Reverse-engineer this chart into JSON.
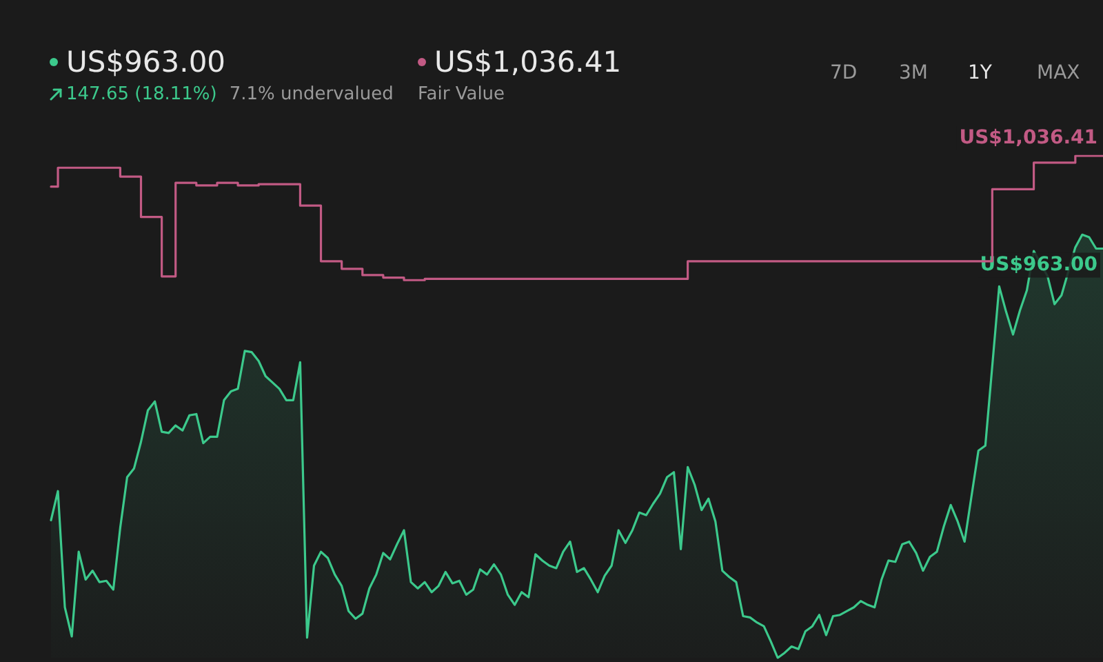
{
  "chart_data": {
    "type": "area",
    "categories": [
      null,
      null,
      null,
      null,
      null,
      null,
      null,
      null,
      null,
      null,
      null,
      null,
      null,
      null,
      null,
      null,
      null,
      null,
      null,
      null,
      null,
      null,
      null,
      null,
      null,
      null,
      null,
      null,
      null,
      null,
      null,
      null,
      null,
      null,
      null,
      null,
      null,
      null,
      null,
      null,
      null,
      null,
      null,
      null,
      null,
      null,
      null,
      null,
      null,
      null,
      null,
      null,
      null,
      null,
      null,
      null,
      null,
      null,
      null,
      null,
      null,
      null,
      null,
      null,
      null,
      null,
      null,
      null,
      null,
      null,
      null,
      null,
      null,
      null,
      null,
      null,
      null,
      null,
      null,
      null,
      null,
      null,
      null,
      null,
      null,
      null,
      null,
      null,
      null,
      null,
      null,
      null,
      null,
      null,
      null,
      null,
      null,
      null,
      null,
      null,
      null,
      null,
      null,
      null,
      null,
      null,
      null,
      null,
      null,
      null,
      null,
      null,
      null,
      null,
      null,
      null,
      null,
      null,
      null,
      null,
      null,
      null,
      null,
      null,
      null,
      null,
      null,
      null,
      null,
      null,
      null,
      null,
      null,
      null,
      null,
      null,
      null,
      null,
      null,
      null,
      null,
      null,
      null,
      null,
      null,
      null,
      null,
      null,
      null,
      null,
      null,
      null,
      null
    ],
    "series": [
      {
        "color": "#3cc98c",
        "values": [
          748,
          771,
          679,
          656,
          723,
          701,
          708,
          699,
          700,
          693,
          742,
          782,
          789,
          810,
          835,
          842,
          818,
          817,
          823,
          819,
          831,
          832,
          809,
          814,
          814,
          843,
          850,
          852,
          882,
          881,
          874,
          862,
          857,
          852,
          843,
          843,
          873,
          655,
          712,
          723,
          718,
          705,
          696,
          676,
          670,
          674,
          694,
          705,
          722,
          717,
          729,
          740,
          699,
          694,
          699,
          691,
          696,
          707,
          698,
          700,
          689,
          693,
          709,
          705,
          713,
          705,
          689,
          681,
          691,
          687,
          721,
          716,
          712,
          710,
          723,
          731,
          707,
          710,
          701,
          691,
          704,
          712,
          740,
          730,
          740,
          754,
          752,
          761,
          769,
          782,
          786,
          725,
          790,
          776,
          756,
          765,
          747,
          708,
          703,
          699,
          672,
          671,
          667,
          664,
          652,
          639,
          643,
          648,
          646,
          660,
          664,
          673,
          657,
          672,
          673,
          676,
          679,
          684,
          681,
          679,
          701,
          716,
          715,
          729,
          731,
          722,
          708,
          719,
          723,
          743,
          760,
          747,
          731,
          767,
          803,
          807,
          null,
          933,
          913,
          895,
          914,
          930,
          961,
          null,
          941,
          919,
          926,
          null,
          964,
          974,
          972,
          963,
          963
        ],
        "value_labels": [
          null,
          null,
          null,
          null,
          null,
          null,
          null,
          null,
          null,
          null,
          null,
          null,
          null,
          null,
          null,
          null,
          null,
          null,
          null,
          null,
          null,
          null,
          null,
          null,
          null,
          null,
          null,
          null,
          null,
          null,
          null,
          null,
          null,
          null,
          null,
          null,
          null,
          null,
          null,
          null,
          null,
          null,
          null,
          null,
          null,
          null,
          null,
          null,
          null,
          null,
          null,
          null,
          null,
          null,
          null,
          null,
          null,
          null,
          null,
          null,
          null,
          null,
          null,
          null,
          null,
          null,
          null,
          null,
          null,
          null,
          null,
          null,
          null,
          null,
          null,
          null,
          null,
          null,
          null,
          null,
          null,
          null,
          null,
          null,
          null,
          null,
          null,
          null,
          null,
          null,
          null,
          null,
          null,
          null,
          null,
          null,
          null,
          null,
          null,
          null,
          null,
          null,
          null,
          null,
          null,
          null,
          null,
          null,
          null,
          null,
          null,
          null,
          null,
          null,
          null,
          null,
          null,
          null,
          null,
          null,
          null,
          null,
          null,
          null,
          null,
          null,
          null,
          null,
          null,
          null,
          null,
          null,
          null,
          null,
          null,
          null,
          null,
          null,
          null,
          null,
          null,
          null,
          null,
          null,
          null,
          null,
          null,
          null,
          null,
          null,
          null,
          null,
          "US$963.00"
        ]
      },
      {
        "name": "Fair Value",
        "type": "step",
        "color": "#c25a84",
        "values": [
          1012,
          1027,
          1027,
          1027,
          1027,
          1027,
          1027,
          1027,
          1027,
          1027,
          1020,
          1020,
          1020,
          988,
          988,
          988,
          941,
          941,
          1015,
          1015,
          1015,
          1013,
          1013,
          1013,
          1015,
          1015,
          1015,
          1013,
          1013,
          1013,
          1014,
          1014,
          1014,
          1014,
          1014,
          1014,
          997,
          997,
          997,
          953,
          953,
          953,
          947,
          947,
          947,
          942,
          942,
          942,
          940,
          940,
          940,
          938,
          938,
          938,
          939,
          939,
          939,
          939,
          939,
          939,
          939,
          939,
          939,
          939,
          939,
          939,
          939,
          939,
          939,
          939,
          939,
          939,
          939,
          939,
          939,
          939,
          939,
          939,
          939,
          939,
          939,
          939,
          939,
          939,
          939,
          939,
          939,
          939,
          939,
          939,
          939,
          939,
          953,
          953,
          953,
          953,
          953,
          953,
          953,
          953,
          953,
          953,
          953,
          953,
          953,
          953,
          953,
          953,
          953,
          953,
          953,
          953,
          953,
          953,
          953,
          953,
          953,
          953,
          953,
          953,
          953,
          953,
          953,
          953,
          953,
          953,
          953,
          953,
          953,
          953,
          953,
          953,
          953,
          953,
          953,
          953,
          1010,
          1010,
          1010,
          1010,
          1010,
          1010,
          1031,
          1031,
          1031,
          1031,
          1031,
          1031,
          1036.41,
          1036.41,
          1036.41,
          1036.41,
          1036.41
        ],
        "value_labels": [
          null,
          null,
          null,
          null,
          null,
          null,
          null,
          null,
          null,
          null,
          null,
          null,
          null,
          null,
          null,
          null,
          null,
          null,
          null,
          null,
          null,
          null,
          null,
          null,
          null,
          null,
          null,
          null,
          null,
          null,
          null,
          null,
          null,
          null,
          null,
          null,
          null,
          null,
          null,
          null,
          null,
          null,
          null,
          null,
          null,
          null,
          null,
          null,
          null,
          null,
          null,
          null,
          null,
          null,
          null,
          null,
          null,
          null,
          null,
          null,
          null,
          null,
          null,
          null,
          null,
          null,
          null,
          null,
          null,
          null,
          null,
          null,
          null,
          null,
          null,
          null,
          null,
          null,
          null,
          null,
          null,
          null,
          null,
          null,
          null,
          null,
          null,
          null,
          null,
          null,
          null,
          null,
          null,
          null,
          null,
          null,
          null,
          null,
          null,
          null,
          null,
          null,
          null,
          null,
          null,
          null,
          null,
          null,
          null,
          null,
          null,
          null,
          null,
          null,
          null,
          null,
          null,
          null,
          null,
          null,
          null,
          null,
          null,
          null,
          null,
          null,
          null,
          null,
          null,
          null,
          null,
          null,
          null,
          null,
          null,
          null,
          null,
          null,
          null,
          null,
          null,
          null,
          null,
          null,
          null,
          null,
          null,
          null,
          null,
          null,
          null,
          null,
          "US$1,036.41"
        ]
      }
    ],
    "annotations": [
      "147.65 (18.11%)",
      "7.1% undervalued",
      "7D",
      "3M",
      "1Y",
      "MAX"
    ],
    "legend": "top left",
    "tick_labels": false,
    "marker": "none"
  }
}
